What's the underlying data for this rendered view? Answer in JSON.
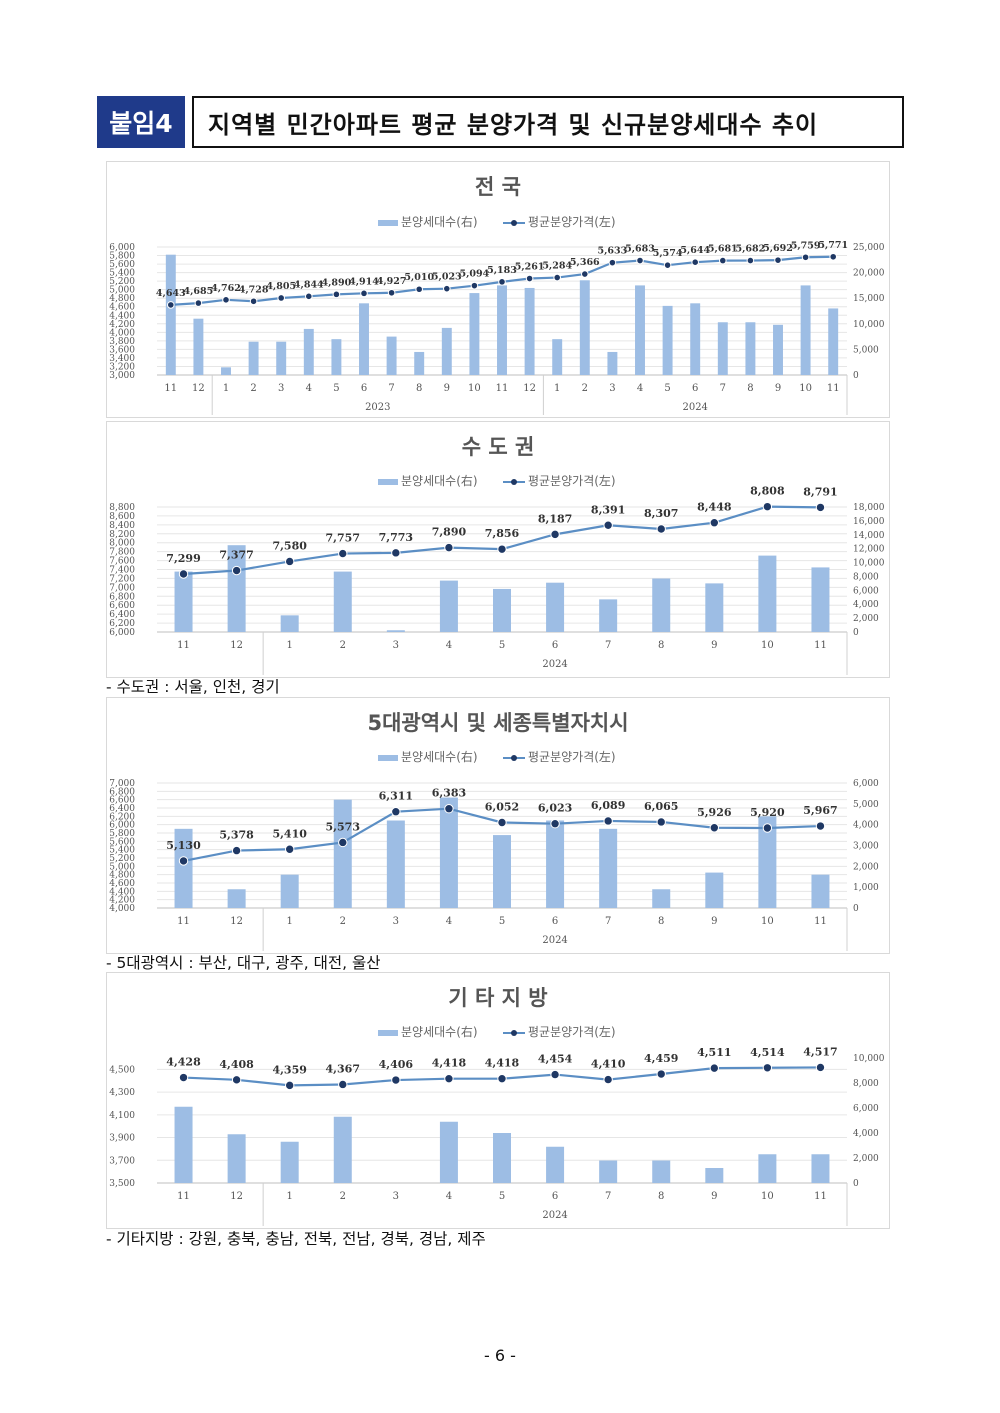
{
  "header": {
    "tag": "붙임4",
    "title": "지역별 민간아파트 평균 분양가격 및 신규분양세대수 추이"
  },
  "legend": {
    "bar_label": "분양세대수(右)",
    "line_label": "평균분양가격(左)"
  },
  "colors": {
    "bar": "#9dbde4",
    "line": "#5b8ec4",
    "marker": "#1f3864",
    "grid": "#e6e6e6"
  },
  "notes": {
    "capital": "- 수도권 : 서울, 인천, 경기",
    "metro": "- 5대광역시 : 부산, 대구, 광주, 대전, 울산",
    "other": "- 기타지방 : 강원, 충북, 충남, 전북, 전남, 경북, 경남, 제주"
  },
  "page_number": "- 6 -",
  "chart_data": [
    {
      "type": "bar",
      "title": "전 국",
      "categories": [
        "11",
        "12",
        "1",
        "2",
        "3",
        "4",
        "5",
        "6",
        "7",
        "8",
        "9",
        "10",
        "11",
        "12",
        "1",
        "2",
        "3",
        "4",
        "5",
        "6",
        "7",
        "8",
        "9",
        "10",
        "11"
      ],
      "year_groups": [
        {
          "label": "2023",
          "start": 2,
          "end": 13
        },
        {
          "label": "2024",
          "start": 14,
          "end": 24
        }
      ],
      "series": [
        {
          "name": "분양세대수(右)",
          "type": "bar",
          "axis": "right",
          "values": [
            23500,
            11000,
            1500,
            6500,
            6500,
            9000,
            7000,
            14000,
            7500,
            4500,
            9200,
            16000,
            17500,
            17000,
            7000,
            18500,
            4500,
            17500,
            13500,
            14000,
            10300,
            10300,
            9800,
            17500,
            13000
          ]
        },
        {
          "name": "평균분양가격(左)",
          "type": "line",
          "axis": "left",
          "values": [
            4643,
            4685,
            4762,
            4728,
            4805,
            4844,
            4890,
            4914,
            4927,
            5010,
            5023,
            5094,
            5183,
            5261,
            5284,
            5366,
            5633,
            5683,
            5574,
            5644,
            5681,
            5682,
            5692,
            5759,
            5771
          ],
          "labels": [
            "4,643",
            "4,685",
            "4,762",
            "4,728",
            "4,805",
            "4,844",
            "4,890",
            "4,914",
            "4,927",
            "5,010",
            "5,023",
            "5,094",
            "5,183",
            "5,261",
            "5,284",
            "5,366",
            "5,633",
            "5,683",
            "5,574",
            "5,644",
            "5,681",
            "5,682",
            "5,692",
            "5,759",
            "5,771"
          ]
        }
      ],
      "left_axis": {
        "min": 3000,
        "max": 6000,
        "step": 200,
        "ticks": [
          "3,000",
          "3,200",
          "3,400",
          "3,600",
          "3,800",
          "4,000",
          "4,200",
          "4,400",
          "4,600",
          "4,800",
          "5,000",
          "5,200",
          "5,400",
          "5,600",
          "5,800",
          "6,000"
        ]
      },
      "right_axis": {
        "min": 0,
        "max": 25000,
        "step": 5000,
        "ticks": [
          "0",
          "5,000",
          "10,000",
          "15,000",
          "20,000",
          "25,000"
        ]
      }
    },
    {
      "type": "bar",
      "title": "수 도 권",
      "categories": [
        "11",
        "12",
        "1",
        "2",
        "3",
        "4",
        "5",
        "6",
        "7",
        "8",
        "9",
        "10",
        "11"
      ],
      "year_groups": [
        {
          "label": "2024",
          "start": 2,
          "end": 12
        }
      ],
      "series": [
        {
          "name": "분양세대수(右)",
          "type": "bar",
          "axis": "right",
          "values": [
            8700,
            12500,
            2400,
            8700,
            250,
            7400,
            6200,
            7100,
            4700,
            7700,
            7000,
            11000,
            9300
          ]
        },
        {
          "name": "평균분양가격(左)",
          "type": "line",
          "axis": "left",
          "values": [
            7299,
            7377,
            7580,
            7757,
            7773,
            7890,
            7856,
            8187,
            8391,
            8307,
            8448,
            8808,
            8791
          ],
          "labels": [
            "7,299",
            "7,377",
            "7,580",
            "7,757",
            "7,773",
            "7,890",
            "7,856",
            "8,187",
            "8,391",
            "8,307",
            "8,448",
            "8,808",
            "8,791"
          ]
        }
      ],
      "left_axis": {
        "min": 6000,
        "max": 8800,
        "step": 200,
        "ticks": [
          "6,000",
          "6,200",
          "6,400",
          "6,600",
          "6,800",
          "7,000",
          "7,200",
          "7,400",
          "7,600",
          "7,800",
          "8,000",
          "8,200",
          "8,400",
          "8,600",
          "8,800"
        ]
      },
      "right_axis": {
        "min": 0,
        "max": 18000,
        "step": 2000,
        "ticks": [
          "0",
          "2,000",
          "4,000",
          "6,000",
          "8,000",
          "10,000",
          "12,000",
          "14,000",
          "16,000",
          "18,000"
        ]
      }
    },
    {
      "type": "bar",
      "title": "5대광역시 및 세종특별자치시",
      "categories": [
        "11",
        "12",
        "1",
        "2",
        "3",
        "4",
        "5",
        "6",
        "7",
        "8",
        "9",
        "10",
        "11"
      ],
      "year_groups": [
        {
          "label": "2024",
          "start": 2,
          "end": 12
        }
      ],
      "series": [
        {
          "name": "분양세대수(右)",
          "type": "bar",
          "axis": "right",
          "values": [
            3800,
            900,
            1600,
            5200,
            4200,
            5300,
            3500,
            4200,
            3800,
            900,
            1700,
            4400,
            1600
          ]
        },
        {
          "name": "평균분양가격(左)",
          "type": "line",
          "axis": "left",
          "values": [
            5130,
            5378,
            5410,
            5573,
            6311,
            6383,
            6052,
            6023,
            6089,
            6065,
            5926,
            5920,
            5967
          ],
          "labels": [
            "5,130",
            "5,378",
            "5,410",
            "5,573",
            "6,311",
            "6,383",
            "6,052",
            "6,023",
            "6,089",
            "6,065",
            "5,926",
            "5,920",
            "5,967"
          ]
        }
      ],
      "left_axis": {
        "min": 4000,
        "max": 7000,
        "step": 200,
        "ticks": [
          "4,000",
          "4,200",
          "4,400",
          "4,600",
          "4,800",
          "5,000",
          "5,200",
          "5,400",
          "5,600",
          "5,800",
          "6,000",
          "6,200",
          "6,400",
          "6,600",
          "6,800",
          "7,000"
        ]
      },
      "right_axis": {
        "min": 0,
        "max": 6000,
        "step": 1000,
        "ticks": [
          "0",
          "1,000",
          "2,000",
          "3,000",
          "4,000",
          "5,000",
          "6,000"
        ]
      }
    },
    {
      "type": "bar",
      "title": "기 타 지 방",
      "categories": [
        "11",
        "12",
        "1",
        "2",
        "3",
        "4",
        "5",
        "6",
        "7",
        "8",
        "9",
        "10",
        "11"
      ],
      "year_groups": [
        {
          "label": "2024",
          "start": 2,
          "end": 12
        }
      ],
      "series": [
        {
          "name": "분양세대수(右)",
          "type": "bar",
          "axis": "right",
          "values": [
            6100,
            3900,
            3300,
            5300,
            0,
            4900,
            4000,
            2900,
            1800,
            1800,
            1200,
            2300,
            2300
          ]
        },
        {
          "name": "평균분양가격(左)",
          "type": "line",
          "axis": "left",
          "values": [
            4428,
            4408,
            4359,
            4367,
            4406,
            4418,
            4418,
            4454,
            4410,
            4459,
            4511,
            4514,
            4517
          ],
          "labels": [
            "4,428",
            "4,408",
            "4,359",
            "4,367",
            "4,406",
            "4,418",
            "4,418",
            "4,454",
            "4,410",
            "4,459",
            "4,511",
            "4,514",
            "4,517"
          ]
        }
      ],
      "left_axis": {
        "min": 3500,
        "max": 4600,
        "step": 200,
        "ticks": [
          "3,500",
          "3,700",
          "3,900",
          "4,100",
          "4,300",
          "4,500"
        ]
      },
      "right_axis": {
        "min": 0,
        "max": 10000,
        "step": 2000,
        "ticks": [
          "0",
          "2,000",
          "4,000",
          "6,000",
          "8,000",
          "10,000"
        ]
      }
    }
  ]
}
